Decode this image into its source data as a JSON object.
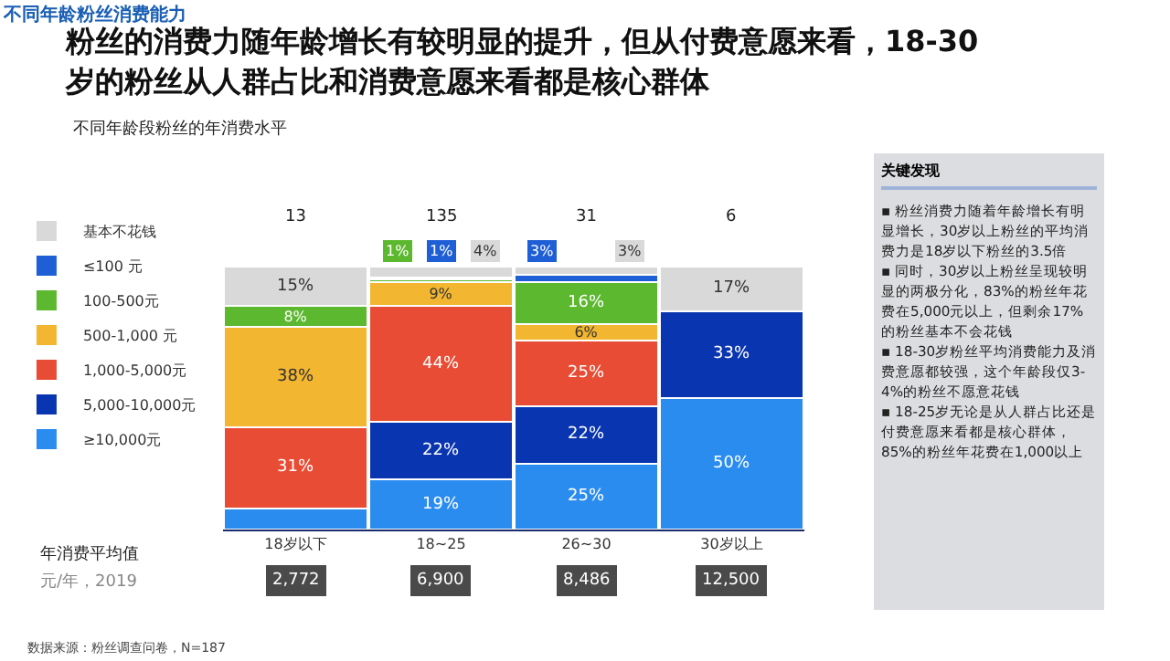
{
  "chart_data": [
    {
      "type": "bar",
      "stacked": true,
      "title": "粉丝的消费力随年龄增长有较明显的提升，但从付费意愿来看，18-30岁的粉丝从人群占比和消费意愿来看都是核心群体",
      "subtitle": "不同年龄段粉丝的年消费水平",
      "categories": [
        "18岁以下",
        "18~25",
        "26~30",
        "30岁以上"
      ],
      "series": [
        {
          "name": "≥10,000元",
          "color": "#2b8cf0",
          "values": [
            8,
            19,
            25,
            50
          ],
          "value_labels": [
            null,
            "19%",
            "25%",
            "50%"
          ]
        },
        {
          "name": "5,000-10,000元",
          "color": "#0a35b0",
          "values": [
            0,
            22,
            22,
            33
          ],
          "value_labels": [
            null,
            "22%",
            "22%",
            "33%"
          ]
        },
        {
          "name": "1,000-5,000元",
          "color": "#e84c35",
          "values": [
            31,
            44,
            25,
            0
          ],
          "value_labels": [
            "31%",
            "44%",
            "25%",
            null
          ]
        },
        {
          "name": "500-1,000 元",
          "color": "#f2b630",
          "values": [
            38,
            9,
            6,
            0
          ],
          "value_labels": [
            "38%",
            "9%",
            "6%",
            null
          ]
        },
        {
          "name": "100-500元",
          "color": "#5cb82e",
          "values": [
            8,
            1,
            16,
            0
          ],
          "value_labels": [
            "8%",
            "1%",
            "16%",
            null
          ]
        },
        {
          "name": "≤100 元",
          "color": "#1f5fd6",
          "values": [
            0,
            1,
            3,
            0
          ],
          "value_labels": [
            null,
            "1%",
            "3%",
            null
          ]
        },
        {
          "name": "基本不花钱",
          "color": "#d9d9d9",
          "values": [
            15,
            4,
            3,
            17
          ],
          "value_labels": [
            "15%",
            "4%",
            "3%",
            "17%"
          ]
        }
      ],
      "legend": "left",
      "tick_labels": "x",
      "annotations": [
        "不同年龄粉丝消费能力",
        "年消费平均值",
        "元/年，2019",
        "数据来源：粉丝调查问卷，N=187",
        {
          "text": "13",
          "x": "18岁以下",
          "y": 100
        },
        {
          "text": "135",
          "x": "18~25",
          "y": 100
        },
        {
          "text": "31",
          "x": "26~30",
          "y": 100
        },
        {
          "text": "6",
          "x": "30岁以上",
          "y": 100
        },
        "2,772",
        "6,900",
        "8,486",
        "12,500"
      ]
    },
    {
      "type": "other",
      "title": "关键发现",
      "annotations": [
        "▪ 粉丝消费力随着年龄增长有明显增长，30岁以上粉丝的平均消费力是18岁以下粉丝的3.5倍",
        "▪ 同时，30岁以上粉丝呈现较明显的两极分化，83%的粉丝年花费在5,000元以上，但剩余17%的粉丝基本不会花钱",
        "▪ 18-30岁粉丝平均消费能力及消费意愿都较强，这个年龄段仅3-4%的粉丝不愿意花钱",
        "▪ 18-25岁无论是从人群占比还是付费意愿来看都是核心群体，85%的粉丝年花费在1,000以上"
      ]
    }
  ]
}
